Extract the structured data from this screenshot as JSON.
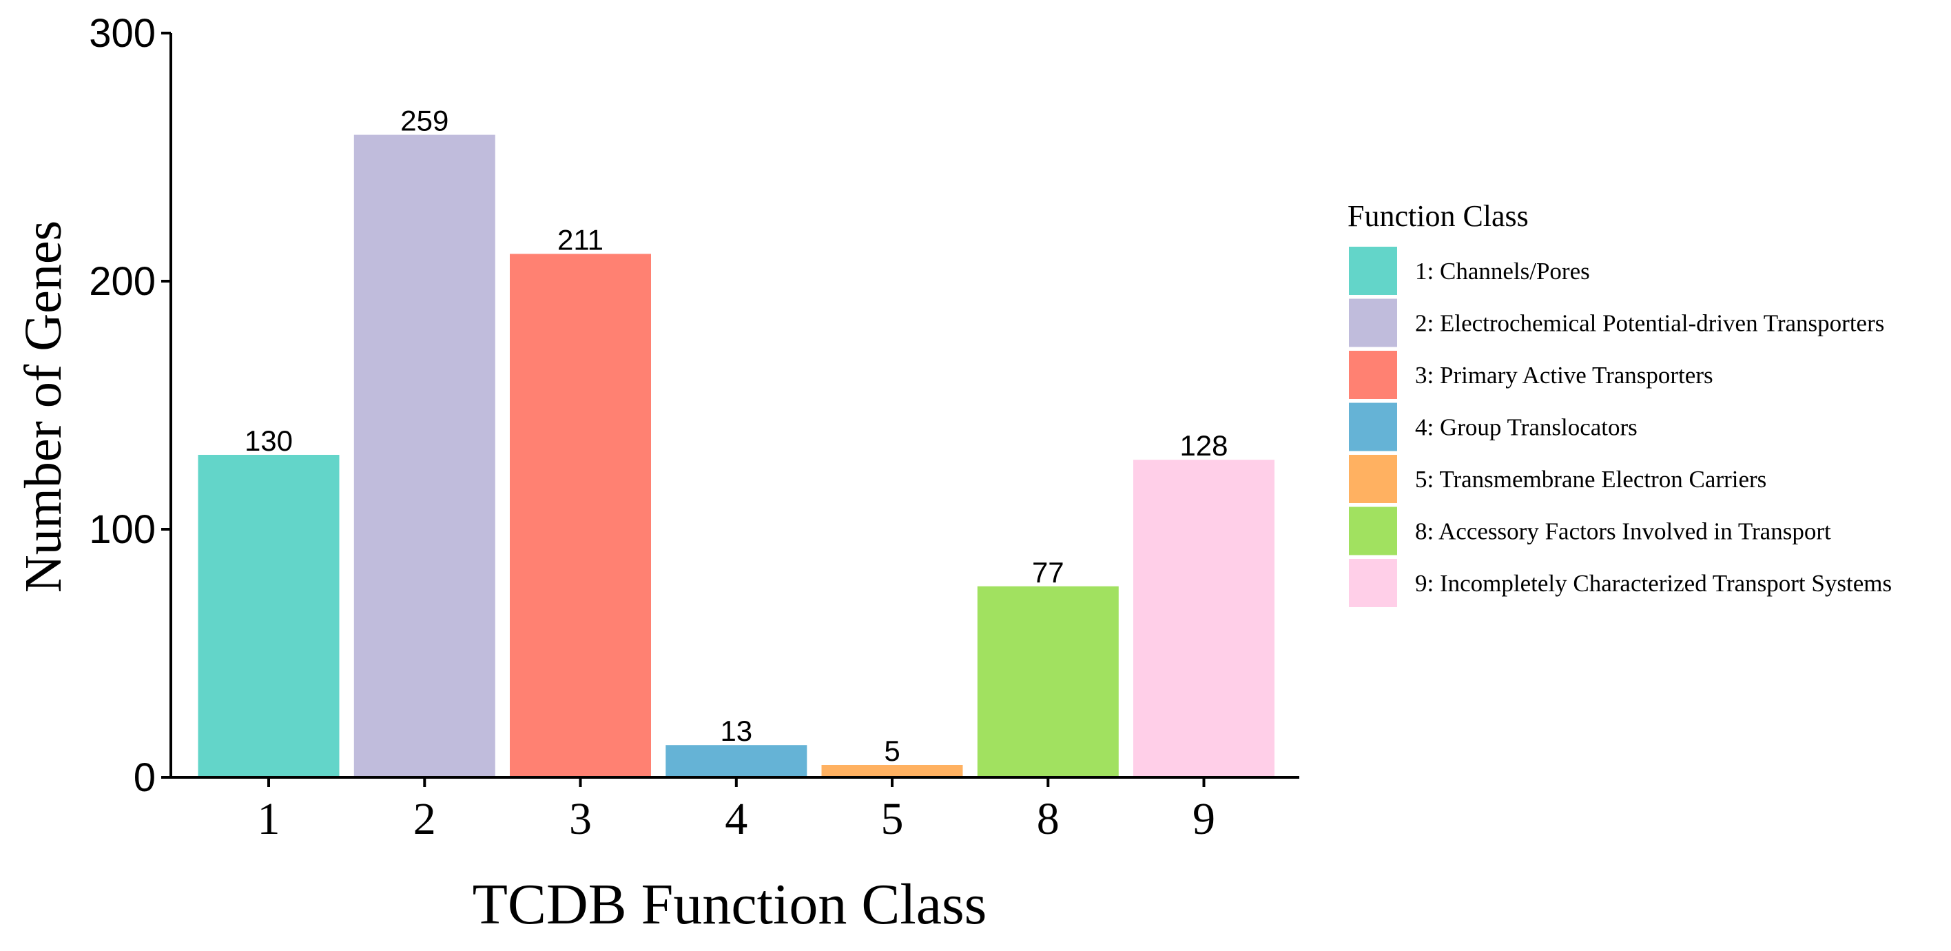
{
  "chart_data": {
    "type": "bar",
    "categories": [
      "1",
      "2",
      "3",
      "4",
      "5",
      "8",
      "9"
    ],
    "values": [
      130,
      259,
      211,
      13,
      5,
      77,
      128
    ],
    "data_labels": [
      "130",
      "259",
      "211",
      "13",
      "5",
      "77",
      "128"
    ],
    "colors": [
      "#63d5c9",
      "#c0bcdc",
      "#ff8172",
      "#65b3d6",
      "#ffb161",
      "#a1e160",
      "#ffcfe8"
    ],
    "xlabel": "TCDB Function Class",
    "ylabel": "Number of Genes",
    "ylim": [
      0,
      300
    ],
    "yticks": [
      0,
      100,
      200,
      300
    ],
    "ytick_labels": [
      "0",
      "100",
      "200",
      "300"
    ],
    "grid": false,
    "legend": {
      "title": "Function Class",
      "placement": "right",
      "entries": [
        "1: Channels/Pores",
        "2: Electrochemical Potential-driven Transporters",
        "3: Primary Active Transporters",
        "4: Group Translocators",
        "5: Transmembrane Electron Carriers",
        "8: Accessory Factors Involved in Transport",
        "9: Incompletely Characterized Transport Systems"
      ]
    }
  }
}
